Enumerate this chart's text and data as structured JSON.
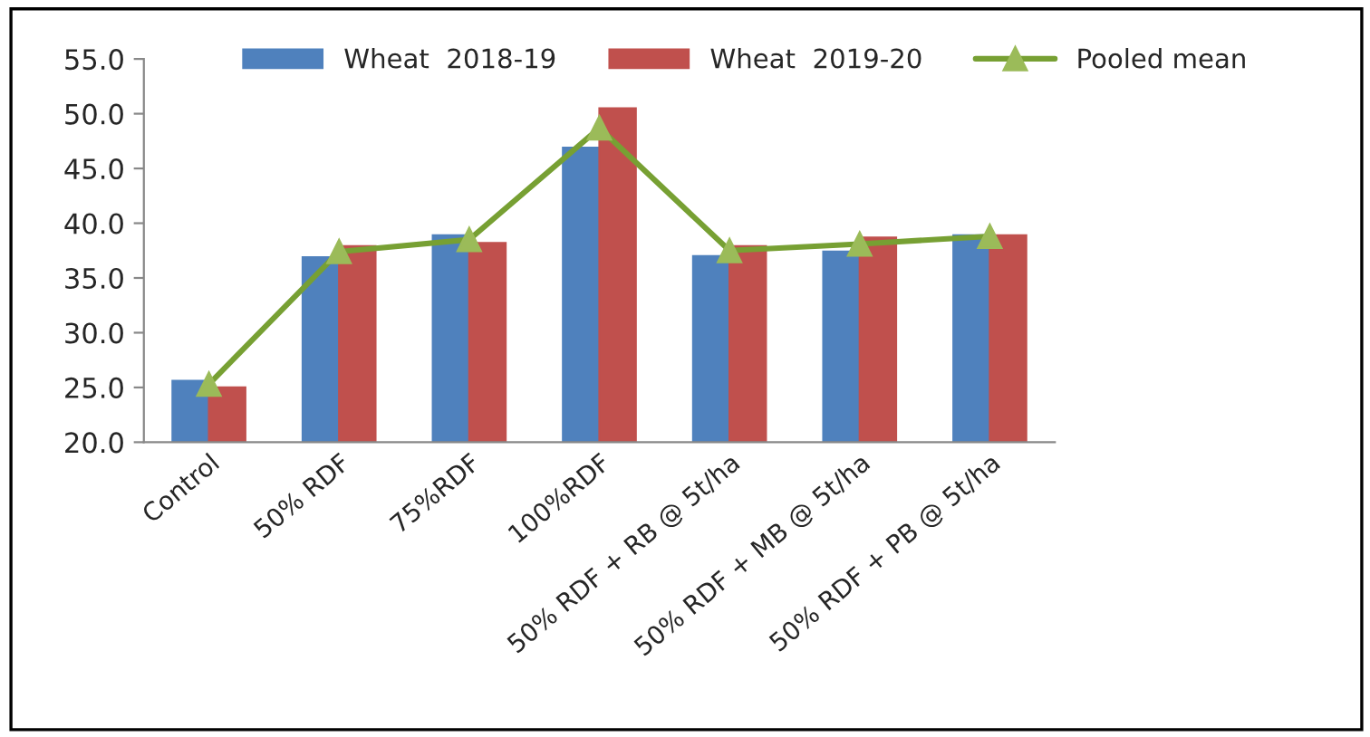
{
  "chart_data": {
    "type": "bar",
    "categories": [
      "Control",
      "50% RDF",
      "75%RDF",
      "100%RDF",
      "50% RDF + RB @ 5t/ha",
      "50% RDF + MB @ 5t/ha",
      "50% RDF + PB @ 5t/ha"
    ],
    "series": [
      {
        "name": "Wheat  2018-19",
        "color": "#4f81bd",
        "values": [
          25.6,
          36.9,
          38.9,
          46.9,
          37.0,
          37.4,
          38.9
        ]
      },
      {
        "name": "Wheat  2019-20",
        "color": "#c0504d",
        "values": [
          25.0,
          37.9,
          38.2,
          50.5,
          37.9,
          38.7,
          38.9
        ]
      },
      {
        "name": "Pooled mean",
        "type": "line",
        "color": "#77a033",
        "marker": "triangle",
        "values": [
          25.3,
          37.4,
          38.5,
          48.7,
          37.5,
          38.1,
          38.8
        ]
      }
    ],
    "ylim": [
      20,
      55
    ],
    "yticks": [
      {
        "value": 20,
        "label": "20.0"
      },
      {
        "value": 25,
        "label": "25.0"
      },
      {
        "value": 30,
        "label": "30.0"
      },
      {
        "value": 35,
        "label": "35.0"
      },
      {
        "value": 40,
        "label": "40.0"
      },
      {
        "value": 45,
        "label": "45.0"
      },
      {
        "value": 50,
        "label": "50.0"
      },
      {
        "value": 55,
        "label": "55.0"
      }
    ],
    "grid": false,
    "legend": "top"
  }
}
